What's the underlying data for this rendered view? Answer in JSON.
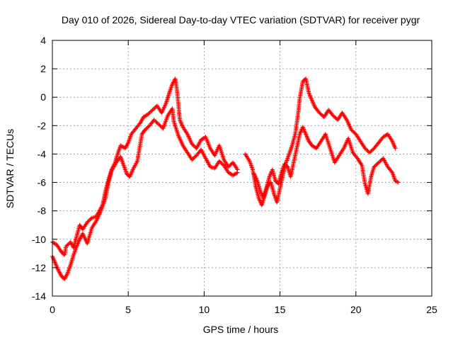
{
  "chart_data": {
    "type": "scatter",
    "title": "Day 010 of 2026, Sidereal Day-to-day VTEC variation (SDTVAR) for receiver pygr",
    "xlabel": "GPS time / hours",
    "ylabel": "SDTVAR / TECUs",
    "xlim": [
      0,
      25
    ],
    "ylim": [
      -14,
      4
    ],
    "x_ticks": [
      "0",
      "5",
      "10",
      "15",
      "20",
      "25"
    ],
    "y_ticks": [
      "-14",
      "-12",
      "-10",
      "-8",
      "-6",
      "-4",
      "-2",
      "0",
      "2",
      "4"
    ],
    "grid": true,
    "marker": "+",
    "marker_color": "#ff0000",
    "series": [
      {
        "name": "SDTVAR",
        "track_a": [
          [
            0.0,
            -10.2
          ],
          [
            0.3,
            -10.4
          ],
          [
            0.6,
            -10.9
          ],
          [
            0.8,
            -11.1
          ],
          [
            0.9,
            -10.5
          ],
          [
            1.2,
            -10.2
          ],
          [
            1.4,
            -10.6
          ],
          [
            1.6,
            -9.8
          ],
          [
            1.8,
            -9.0
          ],
          [
            2.0,
            -9.3
          ],
          [
            2.3,
            -8.8
          ],
          [
            2.6,
            -8.5
          ],
          [
            2.9,
            -8.4
          ],
          [
            3.1,
            -8.0
          ],
          [
            3.3,
            -7.6
          ],
          [
            3.5,
            -6.6
          ],
          [
            3.7,
            -5.8
          ],
          [
            3.9,
            -5.1
          ],
          [
            4.1,
            -4.7
          ],
          [
            4.3,
            -4.0
          ],
          [
            4.5,
            -3.4
          ],
          [
            4.8,
            -3.6
          ],
          [
            5.0,
            -3.2
          ],
          [
            5.2,
            -2.6
          ],
          [
            5.5,
            -2.2
          ],
          [
            5.8,
            -1.8
          ],
          [
            6.0,
            -1.4
          ],
          [
            6.3,
            -1.2
          ],
          [
            6.6,
            -0.9
          ],
          [
            6.9,
            -0.6
          ],
          [
            7.2,
            -1.1
          ],
          [
            7.5,
            -0.4
          ],
          [
            7.7,
            0.3
          ],
          [
            7.9,
            0.9
          ],
          [
            8.1,
            1.3
          ],
          [
            8.2,
            0.6
          ],
          [
            8.4,
            -1.6
          ],
          [
            8.6,
            -2.1
          ],
          [
            8.9,
            -2.6
          ],
          [
            9.2,
            -3.3
          ],
          [
            9.5,
            -3.6
          ],
          [
            9.8,
            -3.0
          ],
          [
            10.1,
            -2.8
          ],
          [
            10.4,
            -3.6
          ],
          [
            10.7,
            -4.1
          ],
          [
            11.0,
            -3.4
          ],
          [
            11.3,
            -4.4
          ],
          [
            11.6,
            -4.9
          ],
          [
            11.9,
            -4.6
          ],
          [
            12.2,
            -5.1
          ]
        ],
        "track_b": [
          [
            0.0,
            -11.2
          ],
          [
            0.2,
            -11.7
          ],
          [
            0.4,
            -12.2
          ],
          [
            0.6,
            -12.6
          ],
          [
            0.8,
            -12.8
          ],
          [
            1.0,
            -12.4
          ],
          [
            1.2,
            -11.8
          ],
          [
            1.4,
            -11.1
          ],
          [
            1.6,
            -10.5
          ],
          [
            1.8,
            -10.0
          ],
          [
            2.0,
            -9.6
          ],
          [
            2.3,
            -10.3
          ],
          [
            2.6,
            -9.2
          ],
          [
            2.9,
            -8.7
          ],
          [
            3.2,
            -8.0
          ],
          [
            3.5,
            -7.1
          ],
          [
            3.7,
            -6.0
          ],
          [
            3.9,
            -5.2
          ],
          [
            4.2,
            -4.6
          ],
          [
            4.5,
            -4.2
          ],
          [
            4.7,
            -4.8
          ],
          [
            4.9,
            -5.4
          ],
          [
            5.1,
            -5.6
          ],
          [
            5.3,
            -5.1
          ],
          [
            5.6,
            -4.5
          ],
          [
            5.9,
            -2.6
          ],
          [
            6.1,
            -2.3
          ],
          [
            6.4,
            -2.0
          ],
          [
            6.7,
            -1.6
          ],
          [
            7.0,
            -1.9
          ],
          [
            7.3,
            -2.2
          ],
          [
            7.6,
            -1.3
          ],
          [
            7.9,
            -0.8
          ],
          [
            8.0,
            -1.7
          ],
          [
            8.3,
            -2.7
          ],
          [
            8.6,
            -3.4
          ],
          [
            8.9,
            -3.9
          ],
          [
            9.2,
            -4.4
          ],
          [
            9.5,
            -4.1
          ],
          [
            9.8,
            -3.7
          ],
          [
            10.1,
            -4.3
          ],
          [
            10.4,
            -4.9
          ],
          [
            10.7,
            -5.0
          ],
          [
            11.0,
            -4.5
          ],
          [
            11.3,
            -4.8
          ],
          [
            11.6,
            -5.3
          ],
          [
            11.9,
            -5.5
          ],
          [
            12.2,
            -5.3
          ]
        ],
        "track_c": [
          [
            12.7,
            -4.0
          ],
          [
            13.0,
            -4.5
          ],
          [
            13.2,
            -5.1
          ],
          [
            13.4,
            -6.3
          ],
          [
            13.6,
            -7.1
          ],
          [
            13.8,
            -7.6
          ],
          [
            14.0,
            -6.9
          ],
          [
            14.2,
            -6.2
          ],
          [
            14.4,
            -6.0
          ],
          [
            14.6,
            -6.8
          ],
          [
            14.8,
            -7.4
          ],
          [
            15.0,
            -6.4
          ],
          [
            15.2,
            -5.4
          ],
          [
            15.4,
            -4.6
          ],
          [
            15.6,
            -4.0
          ],
          [
            15.8,
            -3.4
          ],
          [
            16.0,
            -2.6
          ],
          [
            16.2,
            -1.1
          ],
          [
            16.3,
            -0.1
          ],
          [
            16.5,
            1.1
          ],
          [
            16.7,
            1.3
          ],
          [
            16.9,
            0.3
          ],
          [
            17.1,
            -0.2
          ],
          [
            17.3,
            -0.7
          ],
          [
            17.6,
            -1.1
          ],
          [
            17.9,
            -1.4
          ],
          [
            18.2,
            -0.9
          ],
          [
            18.5,
            -1.3
          ],
          [
            18.8,
            -1.6
          ],
          [
            19.1,
            -1.1
          ],
          [
            19.4,
            -1.6
          ],
          [
            19.7,
            -2.3
          ],
          [
            20.0,
            -2.6
          ],
          [
            20.3,
            -3.1
          ],
          [
            20.6,
            -3.6
          ],
          [
            20.9,
            -3.9
          ],
          [
            21.2,
            -3.6
          ],
          [
            21.5,
            -3.2
          ],
          [
            21.8,
            -2.8
          ],
          [
            22.1,
            -2.6
          ],
          [
            22.4,
            -3.1
          ],
          [
            22.6,
            -3.6
          ]
        ],
        "track_d": [
          [
            13.3,
            -5.4
          ],
          [
            13.5,
            -5.9
          ],
          [
            13.7,
            -6.6
          ],
          [
            13.9,
            -7.1
          ],
          [
            14.1,
            -6.4
          ],
          [
            14.3,
            -5.6
          ],
          [
            14.5,
            -5.1
          ],
          [
            14.7,
            -5.9
          ],
          [
            14.9,
            -6.1
          ],
          [
            15.1,
            -5.3
          ],
          [
            15.3,
            -4.7
          ],
          [
            15.5,
            -4.9
          ],
          [
            15.7,
            -5.6
          ],
          [
            15.9,
            -4.6
          ],
          [
            16.1,
            -3.6
          ],
          [
            16.3,
            -2.6
          ],
          [
            16.5,
            -2.1
          ],
          [
            16.7,
            -2.6
          ],
          [
            16.9,
            -3.1
          ],
          [
            17.1,
            -3.4
          ],
          [
            17.4,
            -3.6
          ],
          [
            17.7,
            -3.1
          ],
          [
            18.0,
            -2.6
          ],
          [
            18.3,
            -3.6
          ],
          [
            18.6,
            -4.6
          ],
          [
            18.9,
            -4.1
          ],
          [
            19.2,
            -3.6
          ],
          [
            19.5,
            -2.9
          ],
          [
            19.8,
            -3.9
          ],
          [
            20.1,
            -4.3
          ],
          [
            20.4,
            -4.8
          ],
          [
            20.6,
            -6.1
          ],
          [
            20.8,
            -6.8
          ],
          [
            21.0,
            -5.6
          ],
          [
            21.2,
            -4.9
          ],
          [
            21.5,
            -4.6
          ],
          [
            21.8,
            -4.3
          ],
          [
            22.1,
            -4.9
          ],
          [
            22.4,
            -5.3
          ],
          [
            22.6,
            -5.9
          ],
          [
            22.8,
            -6.0
          ]
        ]
      }
    ]
  }
}
